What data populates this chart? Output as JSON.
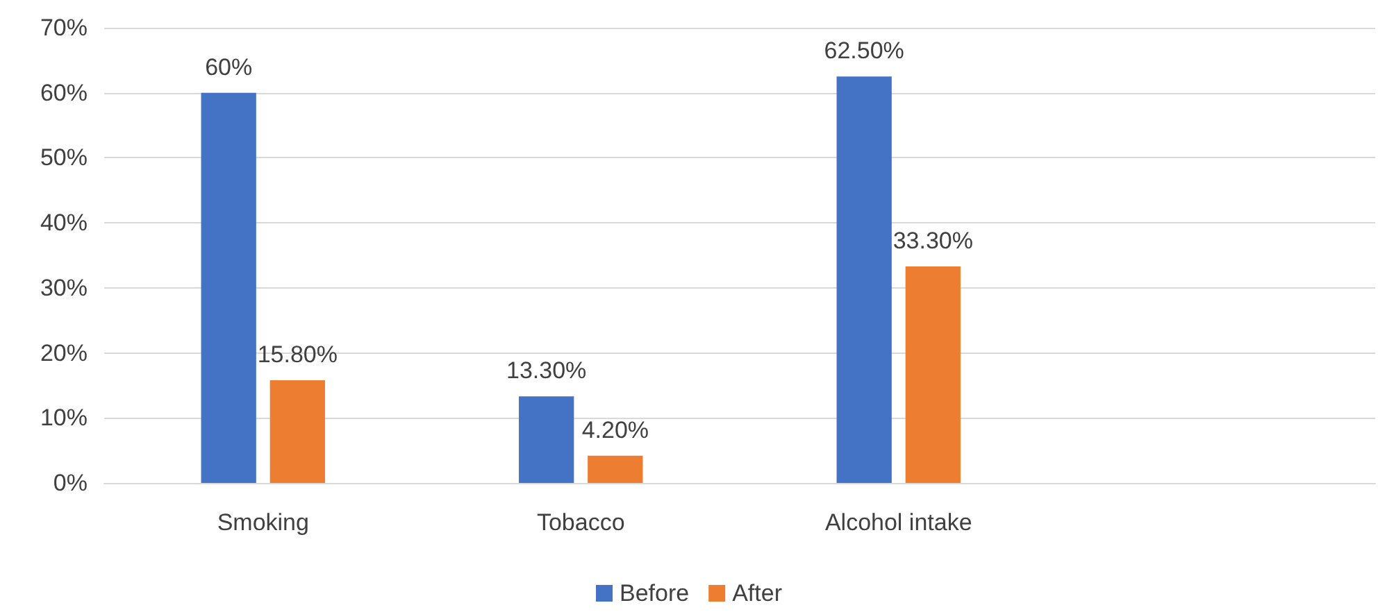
{
  "chart_data": {
    "type": "bar",
    "categories": [
      "Smoking",
      "Tobacco",
      "Alcohol intake",
      null
    ],
    "series": [
      {
        "name": "Before",
        "color": "#4472c4",
        "values": [
          60,
          13.3,
          62.5,
          null
        ],
        "value_labels": [
          "60%",
          "13.30%",
          "62.50%",
          null
        ]
      },
      {
        "name": "After",
        "color": "#ed7d31",
        "values": [
          15.8,
          4.2,
          33.3,
          null
        ],
        "value_labels": [
          "15.80%",
          "4.20%",
          "33.30%",
          null
        ]
      }
    ],
    "ylim": [
      0,
      70
    ],
    "yticks": [
      {
        "value": 0,
        "label": "0%"
      },
      {
        "value": 10,
        "label": "10%"
      },
      {
        "value": 20,
        "label": "20%"
      },
      {
        "value": 30,
        "label": "30%"
      },
      {
        "value": 40,
        "label": "40%"
      },
      {
        "value": 50,
        "label": "50%"
      },
      {
        "value": 60,
        "label": "60%"
      },
      {
        "value": 70,
        "label": "70%"
      }
    ],
    "grid": "y",
    "legend": "bottom"
  }
}
